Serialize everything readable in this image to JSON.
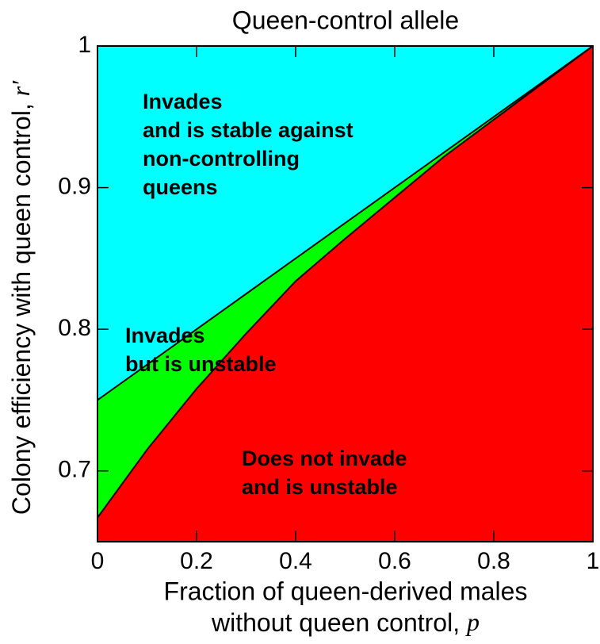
{
  "chart_data": {
    "type": "region",
    "title": "Queen-control allele",
    "xlabel": [
      "Fraction of queen-derived males",
      "without queen control, "
    ],
    "xlabel_symbol": "p",
    "ylabel": "Colony efficiency with queen control, ",
    "ylabel_symbol": "r′",
    "x": [
      0,
      0.1,
      0.2,
      0.3,
      0.4,
      0.5,
      0.6,
      0.7,
      0.8,
      0.9,
      1
    ],
    "series": [
      {
        "color": "#00ffff",
        "values": [
          0.75,
          0.775,
          0.8,
          0.825,
          0.85,
          0.875,
          0.9,
          0.925,
          0.95,
          0.975,
          1
        ]
      },
      {
        "color": "#00ff00",
        "values": [
          0.667,
          0.715,
          0.758,
          0.797,
          0.834,
          0.864,
          0.893,
          0.922,
          0.948,
          0.974,
          1
        ]
      }
    ],
    "below_color": "#ff0000",
    "annotations": [
      [
        "Invades",
        "and is stable against",
        "non-controlling",
        "queens"
      ],
      [
        "Invades",
        "but is unstable"
      ],
      [
        "Does not invade",
        "and is unstable"
      ]
    ],
    "xlim": [
      0,
      1
    ],
    "ylim": [
      0.65,
      1
    ],
    "xticks": [
      0,
      0.2,
      0.4,
      0.6,
      0.8,
      1
    ],
    "yticks": [
      0.7,
      0.8,
      0.9,
      1
    ]
  }
}
